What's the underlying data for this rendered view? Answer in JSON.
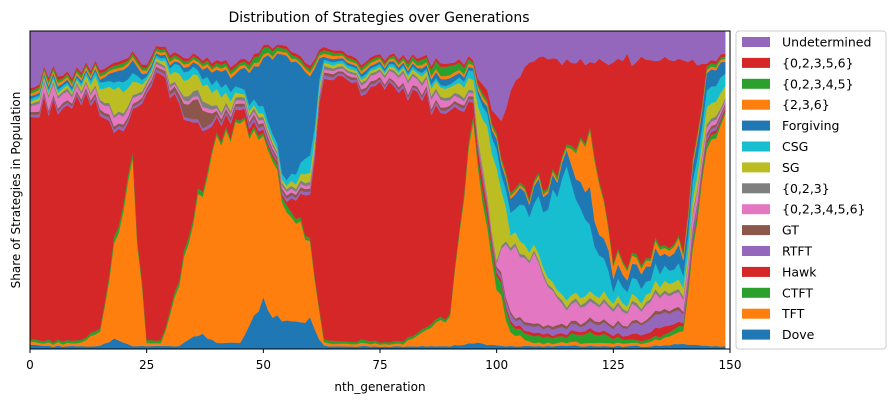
{
  "chart_data": {
    "type": "area",
    "stacked": true,
    "normalized": true,
    "title": "Distribution of Strategies over Generations",
    "xlabel": "nth_generation",
    "ylabel": "Share of Strategies in Population",
    "xlim": [
      0,
      149
    ],
    "ylim": [
      0,
      1
    ],
    "xticks": [
      0,
      25,
      50,
      75,
      100,
      125,
      150
    ],
    "yticks_visible": false,
    "grid": false,
    "legend": {
      "placement": "outside-right",
      "order_top_to_bottom": [
        "Undetermined",
        "{0,2,3,5,6}",
        "{0,2,3,4,5}",
        "{2,3,6}",
        "Forgiving",
        "CSG",
        "SG",
        "{0,2,3}",
        "{0,2,3,4,5,6}",
        "GT",
        "RTFT",
        "Hawk",
        "CTFT",
        "TFT",
        "Dove"
      ]
    },
    "keyframes": [
      0,
      5,
      10,
      15,
      18,
      22,
      25,
      28,
      32,
      36,
      40,
      45,
      50,
      55,
      60,
      63,
      70,
      80,
      90,
      95,
      100,
      103,
      108,
      115,
      120,
      125,
      130,
      135,
      140,
      145,
      149
    ],
    "series": [
      {
        "name": "Dove",
        "color": "#1f77b4",
        "values": [
          0.02,
          0.01,
          0.01,
          0.01,
          0.03,
          0.01,
          0.01,
          0.01,
          0.01,
          0.05,
          0.02,
          0.02,
          0.15,
          0.08,
          0.1,
          0.01,
          0.01,
          0.01,
          0.01,
          0.02,
          0.01,
          0.01,
          0.01,
          0.01,
          0.01,
          0.01,
          0.01,
          0.01,
          0.02,
          0.01,
          0.01
        ]
      },
      {
        "name": "TFT",
        "color": "#ff7f0e",
        "values": [
          0.01,
          0.01,
          0.01,
          0.05,
          0.3,
          0.55,
          0.01,
          0.01,
          0.2,
          0.45,
          0.65,
          0.75,
          0.55,
          0.4,
          0.25,
          0.01,
          0.01,
          0.01,
          0.1,
          0.7,
          0.2,
          0.05,
          0.01,
          0.01,
          0.01,
          0.01,
          0.01,
          0.02,
          0.05,
          0.7,
          0.8
        ]
      },
      {
        "name": "CTFT",
        "color": "#2ca02c",
        "values": [
          0.01,
          0.01,
          0.01,
          0.01,
          0.02,
          0.02,
          0.01,
          0.01,
          0.02,
          0.02,
          0.01,
          0.01,
          0.01,
          0.02,
          0.01,
          0.01,
          0.01,
          0.01,
          0.01,
          0.02,
          0.05,
          0.03,
          0.02,
          0.02,
          0.03,
          0.02,
          0.01,
          0.01,
          0.02,
          0.02,
          0.01
        ]
      },
      {
        "name": "Hawk",
        "color": "#d62728",
        "values": [
          0.85,
          0.9,
          0.85,
          0.75,
          0.35,
          0.15,
          0.9,
          0.95,
          0.55,
          0.2,
          0.05,
          0.03,
          0.01,
          0.01,
          0.15,
          0.9,
          0.95,
          0.93,
          0.6,
          0.05,
          0.01,
          0.01,
          0.01,
          0.01,
          0.01,
          0.01,
          0.02,
          0.03,
          0.01,
          0.01,
          0.01
        ]
      },
      {
        "name": "RTFT",
        "color": "#9467bd",
        "values": [
          0.01,
          0.01,
          0.01,
          0.01,
          0.01,
          0.01,
          0.01,
          0.01,
          0.01,
          0.01,
          0.01,
          0.01,
          0.01,
          0.01,
          0.01,
          0.01,
          0.01,
          0.01,
          0.01,
          0.01,
          0.01,
          0.02,
          0.02,
          0.02,
          0.02,
          0.03,
          0.03,
          0.05,
          0.03,
          0.01,
          0.01
        ]
      },
      {
        "name": "GT",
        "color": "#8c564b",
        "values": [
          0.01,
          0.01,
          0.01,
          0.01,
          0.01,
          0.01,
          0.01,
          0.01,
          0.02,
          0.08,
          0.01,
          0.01,
          0.01,
          0.01,
          0.01,
          0.01,
          0.01,
          0.01,
          0.01,
          0.01,
          0.01,
          0.01,
          0.01,
          0.01,
          0.01,
          0.01,
          0.01,
          0.01,
          0.01,
          0.01,
          0.01
        ]
      },
      {
        "name": "{0,2,3,4,5,6}",
        "color": "#e377c2",
        "values": [
          0.02,
          0.04,
          0.02,
          0.02,
          0.03,
          0.02,
          0.01,
          0.01,
          0.01,
          0.01,
          0.01,
          0.01,
          0.01,
          0.01,
          0.01,
          0.01,
          0.01,
          0.04,
          0.02,
          0.01,
          0.01,
          0.25,
          0.2,
          0.05,
          0.05,
          0.05,
          0.05,
          0.05,
          0.05,
          0.02,
          0.01
        ]
      },
      {
        "name": "{0,2,3}",
        "color": "#7f7f7f",
        "values": [
          0.01,
          0.01,
          0.01,
          0.01,
          0.01,
          0.01,
          0.01,
          0.01,
          0.01,
          0.02,
          0.01,
          0.01,
          0.01,
          0.01,
          0.01,
          0.01,
          0.01,
          0.01,
          0.01,
          0.01,
          0.01,
          0.01,
          0.01,
          0.01,
          0.01,
          0.01,
          0.01,
          0.01,
          0.01,
          0.01,
          0.01
        ]
      },
      {
        "name": "SG",
        "color": "#bcbd22",
        "values": [
          0.01,
          0.01,
          0.01,
          0.04,
          0.08,
          0.05,
          0.01,
          0.01,
          0.05,
          0.05,
          0.05,
          0.01,
          0.01,
          0.01,
          0.03,
          0.01,
          0.01,
          0.01,
          0.03,
          0.04,
          0.3,
          0.05,
          0.02,
          0.02,
          0.02,
          0.02,
          0.02,
          0.03,
          0.03,
          0.05,
          0.05
        ]
      },
      {
        "name": "CSG",
        "color": "#17becf",
        "values": [
          0.01,
          0.01,
          0.01,
          0.02,
          0.02,
          0.03,
          0.01,
          0.01,
          0.03,
          0.02,
          0.03,
          0.02,
          0.02,
          0.02,
          0.05,
          0.01,
          0.01,
          0.01,
          0.01,
          0.03,
          0.05,
          0.08,
          0.15,
          0.4,
          0.2,
          0.05,
          0.05,
          0.05,
          0.05,
          0.05,
          0.05
        ]
      },
      {
        "name": "Forgiving",
        "color": "#1f77b4",
        "values": [
          0.01,
          0.01,
          0.01,
          0.01,
          0.03,
          0.05,
          0.01,
          0.01,
          0.01,
          0.02,
          0.04,
          0.05,
          0.15,
          0.4,
          0.25,
          0.01,
          0.01,
          0.01,
          0.02,
          0.01,
          0.03,
          0.05,
          0.05,
          0.05,
          0.1,
          0.05,
          0.05,
          0.05,
          0.05,
          0.05,
          0.05
        ]
      },
      {
        "name": "{2,3,6}",
        "color": "#ff7f0e",
        "values": [
          0.01,
          0.01,
          0.01,
          0.01,
          0.01,
          0.01,
          0.01,
          0.01,
          0.01,
          0.01,
          0.01,
          0.01,
          0.01,
          0.01,
          0.01,
          0.01,
          0.01,
          0.01,
          0.01,
          0.01,
          0.01,
          0.01,
          0.01,
          0.01,
          0.2,
          0.05,
          0.02,
          0.02,
          0.02,
          0.01,
          0.01
        ]
      },
      {
        "name": "{0,2,3,4,5}",
        "color": "#2ca02c",
        "values": [
          0.01,
          0.01,
          0.01,
          0.01,
          0.01,
          0.01,
          0.01,
          0.01,
          0.01,
          0.01,
          0.01,
          0.01,
          0.02,
          0.01,
          0.01,
          0.01,
          0.01,
          0.01,
          0.03,
          0.01,
          0.01,
          0.01,
          0.01,
          0.01,
          0.01,
          0.01,
          0.01,
          0.01,
          0.01,
          0.01,
          0.01
        ]
      },
      {
        "name": "{0,2,3,5,6}",
        "color": "#d62728",
        "values": [
          0.01,
          0.01,
          0.01,
          0.01,
          0.01,
          0.01,
          0.01,
          0.01,
          0.01,
          0.01,
          0.01,
          0.01,
          0.01,
          0.01,
          0.01,
          0.01,
          0.01,
          0.01,
          0.01,
          0.01,
          0.05,
          0.35,
          0.45,
          0.3,
          0.2,
          0.65,
          0.7,
          0.6,
          0.6,
          0.01,
          0.01
        ]
      },
      {
        "name": "Undetermined",
        "color": "#9467bd",
        "values": [
          0.2,
          0.15,
          0.15,
          0.12,
          0.1,
          0.08,
          0.1,
          0.05,
          0.1,
          0.08,
          0.1,
          0.1,
          0.05,
          0.05,
          0.1,
          0.05,
          0.1,
          0.1,
          0.1,
          0.1,
          0.3,
          0.2,
          0.1,
          0.1,
          0.1,
          0.1,
          0.1,
          0.1,
          0.1,
          0.1,
          0.1
        ]
      }
    ]
  }
}
